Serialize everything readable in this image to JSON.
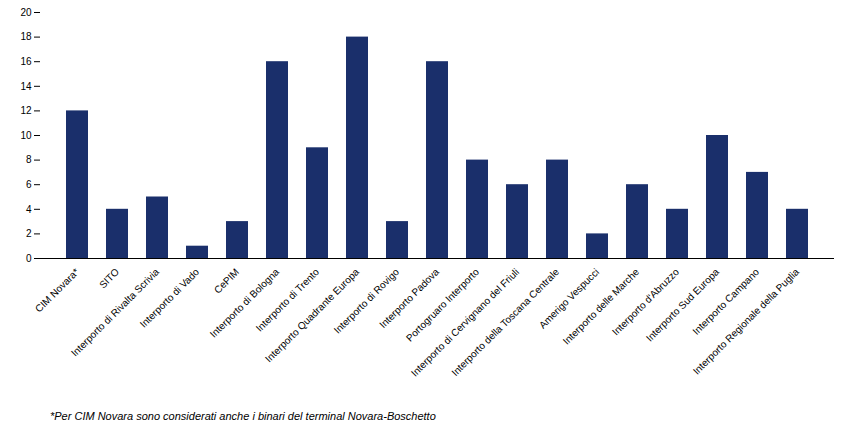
{
  "chart_data": {
    "type": "bar",
    "categories": [
      "CIM Novara*",
      "SITO",
      "Interporto di Rivalta Scrivia",
      "Interporto di Vado",
      "CePIM",
      "Interporto di Bologna",
      "Interporto di Trento",
      "Interporto Quadrante Europa",
      "Interporto di Rovigo",
      "Interporto Padova",
      "Portogruaro Interporto",
      "Interporto di Cervignano del Friuli",
      "Interporto della Toscana Centrale",
      "Amerigo Vespucci",
      "Interporto delle Marche",
      "Interporto d'Abruzzo",
      "Interporto Sud Europa",
      "Interporto Campano",
      "Interporto Regionale della Puglia"
    ],
    "values": [
      12,
      4,
      5,
      1,
      3,
      16,
      9,
      18,
      3,
      16,
      8,
      6,
      8,
      2,
      6,
      4,
      10,
      7,
      4
    ],
    "color": "#1a2f6b",
    "ylim": [
      0,
      20
    ],
    "yticks": [
      0,
      2,
      4,
      6,
      8,
      10,
      12,
      14,
      16,
      18,
      20
    ],
    "grid": false,
    "footnote": "*Per CIM Novara sono considerati anche i binari del terminal Novara-Boschetto"
  }
}
